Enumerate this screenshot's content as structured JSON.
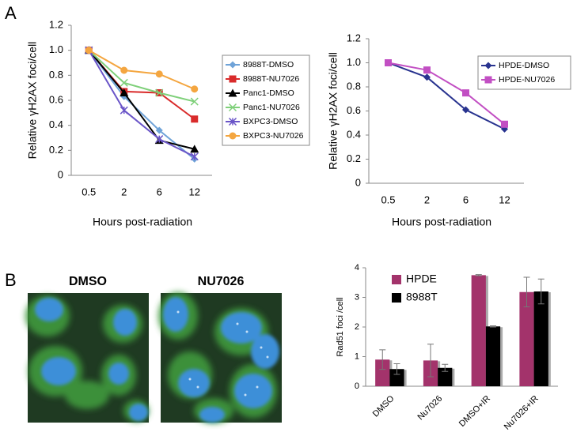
{
  "panels": {
    "a": "A",
    "b": "B",
    "images": [
      "DMSO",
      "NU7026"
    ]
  },
  "chart_data": [
    {
      "type": "line",
      "x_label": "Hours post-radiation",
      "y_label": "Relative γH2AX foci/cell",
      "categories": [
        "0.5",
        "2",
        "6",
        "12"
      ],
      "ylim": [
        0,
        1.2
      ],
      "yticks": [
        0,
        0.2,
        0.4,
        0.6,
        0.8,
        {
          "value": 1,
          "label": "1.0"
        },
        1.2
      ],
      "legend": "right",
      "series": [
        {
          "name": "8988T-DMSO",
          "color": "#6fa3d8",
          "marker": "diamond",
          "values": [
            1.0,
            0.63,
            0.36,
            0.13
          ]
        },
        {
          "name": "8988T-NU7026",
          "color": "#d92b2b",
          "marker": "square",
          "values": [
            1.0,
            0.67,
            0.66,
            0.45
          ]
        },
        {
          "name": "Panc1-DMSO",
          "color": "#000000",
          "marker": "triangle",
          "values": [
            1.0,
            0.66,
            0.28,
            0.21
          ]
        },
        {
          "name": "Panc1-NU7026",
          "color": "#7fd07a",
          "marker": "x",
          "values": [
            1.0,
            0.74,
            0.66,
            0.59
          ]
        },
        {
          "name": "BXPC3-DMSO",
          "color": "#6a55c8",
          "marker": "star",
          "values": [
            1.0,
            0.52,
            0.29,
            0.15
          ]
        },
        {
          "name": "BXPC3-NU7026",
          "color": "#f4a640",
          "marker": "circle",
          "values": [
            1.0,
            0.84,
            0.81,
            0.69
          ]
        }
      ]
    },
    {
      "type": "line",
      "x_label": "Hours post-radiation",
      "y_label": "Relative γH2AX foci/cell",
      "categories": [
        "0.5",
        "2",
        "6",
        "12"
      ],
      "ylim": [
        0,
        1.2
      ],
      "yticks": [
        0,
        0.2,
        0.4,
        0.6,
        0.8,
        {
          "value": 1,
          "label": "1.0"
        },
        1.2
      ],
      "legend": "right",
      "series": [
        {
          "name": "HPDE-DMSO",
          "color": "#28338f",
          "marker": "diamond",
          "values": [
            1.0,
            0.88,
            0.61,
            0.45
          ]
        },
        {
          "name": "HPDE-NU7026",
          "color": "#c24fc3",
          "marker": "square",
          "values": [
            1.0,
            0.94,
            0.75,
            0.49
          ]
        }
      ]
    },
    {
      "type": "bar",
      "y_label": "Rad51 foci /cell",
      "categories": [
        "DMSO",
        "Nu7026",
        "DMSO+IR",
        "Nu7026+IR"
      ],
      "ylim": [
        0,
        4
      ],
      "yticks": [
        0,
        1,
        2,
        3,
        4
      ],
      "legend": "upper left",
      "series": [
        {
          "name": "HPDE",
          "color": "#a3336b",
          "values": [
            0.9,
            0.87,
            3.75,
            3.18
          ],
          "errors": [
            0.33,
            0.55,
            0.02,
            0.5
          ]
        },
        {
          "name": "8988T",
          "color": "#000000",
          "values": [
            0.58,
            0.62,
            2.02,
            3.2
          ],
          "errors": [
            0.18,
            0.12,
            0.02,
            0.42
          ]
        }
      ]
    }
  ]
}
